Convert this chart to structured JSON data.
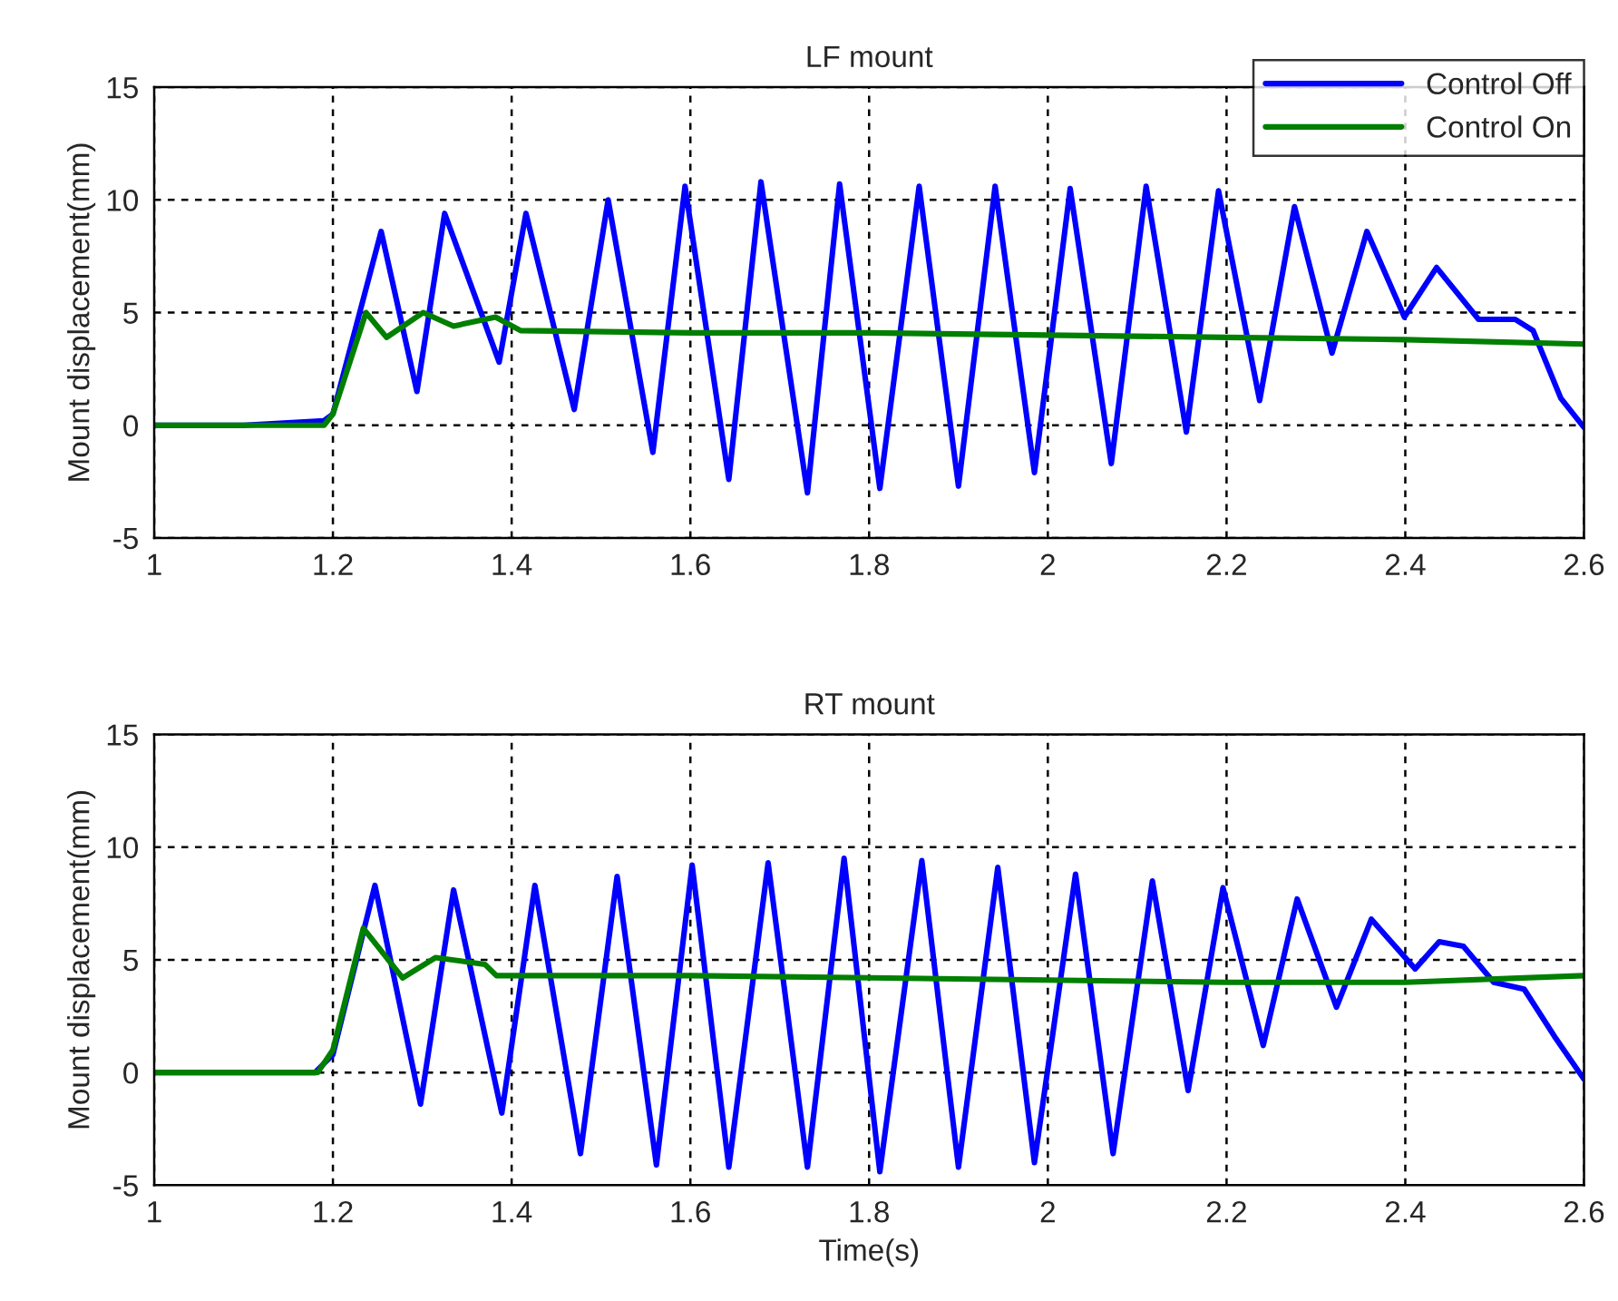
{
  "chart_data": [
    {
      "type": "line",
      "title": "LF mount",
      "ylabel": "Mount displacement(mm)",
      "xlim": [
        1,
        2.6
      ],
      "xticks": [
        1,
        1.2,
        1.4,
        1.6,
        1.8,
        2,
        2.2,
        2.4,
        2.6
      ],
      "ylim": [
        -5,
        15
      ],
      "yticks": [
        -5,
        0,
        5,
        10,
        15
      ],
      "grid": true,
      "legend": "top right",
      "line_style": "solid",
      "marker": "none",
      "series": [
        {
          "name": "Control Off",
          "color": "#0000ff",
          "x": [
            1.0,
            1.1,
            1.19,
            1.2,
            1.254,
            1.294,
            1.325,
            1.386,
            1.416,
            1.47,
            1.508,
            1.558,
            1.594,
            1.643,
            1.679,
            1.731,
            1.767,
            1.812,
            1.856,
            1.9,
            1.941,
            1.985,
            2.025,
            2.071,
            2.11,
            2.155,
            2.191,
            2.237,
            2.276,
            2.318,
            2.357,
            2.399,
            2.435,
            2.482,
            2.523,
            2.543,
            2.574,
            2.6
          ],
          "values": [
            0,
            0,
            0.2,
            0.5,
            8.6,
            1.5,
            9.4,
            2.8,
            9.4,
            0.7,
            10.0,
            -1.2,
            10.6,
            -2.4,
            10.8,
            -3.0,
            10.7,
            -2.8,
            10.6,
            -2.7,
            10.6,
            -2.1,
            10.5,
            -1.7,
            10.6,
            -0.3,
            10.4,
            1.1,
            9.7,
            3.2,
            8.6,
            4.8,
            7.0,
            4.7,
            4.7,
            4.2,
            1.2,
            -0.1
          ]
        },
        {
          "name": "Control On",
          "color": "#007f00",
          "x": [
            1.0,
            1.19,
            1.2,
            1.237,
            1.26,
            1.301,
            1.335,
            1.382,
            1.41,
            1.6,
            1.8,
            2.0,
            2.2,
            2.4,
            2.6
          ],
          "values": [
            0,
            0,
            0.5,
            5.0,
            3.9,
            5.0,
            4.4,
            4.8,
            4.2,
            4.1,
            4.1,
            4.0,
            3.9,
            3.8,
            3.6
          ]
        }
      ]
    },
    {
      "type": "line",
      "title": "RT mount",
      "xlabel": "Time(s)",
      "ylabel": "Mount displacement(mm)",
      "xlim": [
        1,
        2.6
      ],
      "xticks": [
        1,
        1.2,
        1.4,
        1.6,
        1.8,
        2,
        2.2,
        2.4,
        2.6
      ],
      "ylim": [
        -5,
        15
      ],
      "yticks": [
        -5,
        0,
        5,
        10,
        15
      ],
      "grid": true,
      "line_style": "solid",
      "marker": "none",
      "series": [
        {
          "color": "#0000ff",
          "x": [
            1.0,
            1.18,
            1.2,
            1.247,
            1.298,
            1.335,
            1.389,
            1.426,
            1.477,
            1.518,
            1.562,
            1.602,
            1.643,
            1.687,
            1.731,
            1.772,
            1.812,
            1.859,
            1.9,
            1.944,
            1.985,
            2.031,
            2.073,
            2.117,
            2.157,
            2.196,
            2.241,
            2.279,
            2.323,
            2.362,
            2.411,
            2.438,
            2.465,
            2.499,
            2.533,
            2.567,
            2.6
          ],
          "values": [
            0,
            0,
            0.8,
            8.3,
            -1.4,
            8.1,
            -1.8,
            8.3,
            -3.6,
            8.7,
            -4.1,
            9.2,
            -4.2,
            9.3,
            -4.2,
            9.5,
            -4.4,
            9.4,
            -4.2,
            9.1,
            -4.0,
            8.8,
            -3.6,
            8.5,
            -0.8,
            8.2,
            1.2,
            7.7,
            2.9,
            6.8,
            4.6,
            5.8,
            5.6,
            4.0,
            3.7,
            1.6,
            -0.3
          ]
        },
        {
          "color": "#007f00",
          "x": [
            1.0,
            1.183,
            1.2,
            1.234,
            1.278,
            1.315,
            1.37,
            1.383,
            1.6,
            1.8,
            2.0,
            2.2,
            2.4,
            2.6
          ],
          "values": [
            0,
            0,
            1.0,
            6.4,
            4.2,
            5.1,
            4.8,
            4.3,
            4.3,
            4.2,
            4.1,
            4.0,
            4.0,
            4.3
          ]
        }
      ]
    }
  ]
}
